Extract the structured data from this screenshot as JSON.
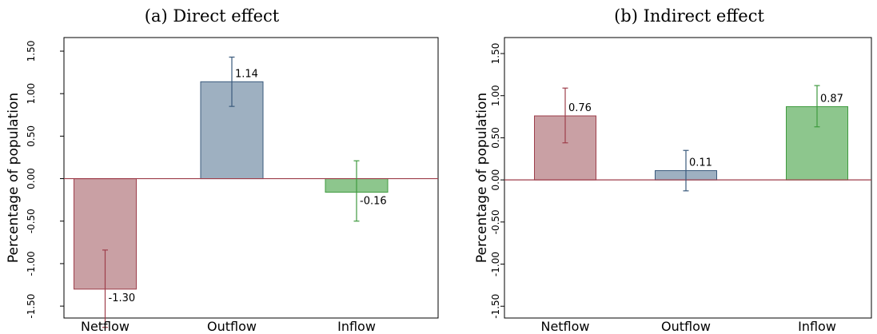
{
  "chart_data": [
    {
      "type": "bar",
      "title": "(a) Direct effect",
      "ylabel": "Percentage of population",
      "xlabel": "",
      "categories": [
        "Netflow",
        "Outflow",
        "Inflow"
      ],
      "values": [
        -1.3,
        1.14,
        -0.16
      ],
      "value_labels": [
        "-1.30",
        "1.14",
        "-0.16"
      ],
      "ci_low": [
        -1.75,
        0.85,
        -0.5
      ],
      "ci_high": [
        -0.84,
        1.43,
        0.21
      ],
      "yticks": [
        -1.5,
        -1.0,
        -0.5,
        0.0,
        0.5,
        1.0,
        1.5
      ],
      "ytick_labels": [
        "-1.50",
        "-1.00",
        "-0.50",
        "0.00",
        "0.50",
        "1.00",
        "1.50"
      ],
      "ylim": [
        -1.64,
        1.66
      ],
      "grid": false,
      "colors": {
        "fills": [
          "#c9a0a4",
          "#9eb0c1",
          "#8dc68d"
        ],
        "strokes": [
          "#9e3e4b",
          "#3a5a7c",
          "#3f9a3f"
        ],
        "zero_line": "#9e3e4b"
      }
    },
    {
      "type": "bar",
      "title": "(b) Indirect effect",
      "ylabel": "Percentage of population",
      "xlabel": "",
      "categories": [
        "Netflow",
        "Outflow",
        "Inflow"
      ],
      "values": [
        0.76,
        0.11,
        0.87
      ],
      "value_labels": [
        "0.76",
        "0.11",
        "0.87"
      ],
      "ci_low": [
        0.44,
        -0.13,
        0.63
      ],
      "ci_high": [
        1.09,
        0.35,
        1.12
      ],
      "yticks": [
        -1.5,
        -1.0,
        -0.5,
        0.0,
        0.5,
        1.0,
        1.5
      ],
      "ytick_labels": [
        "-1.50",
        "-1.00",
        "-0.50",
        "0.00",
        "0.50",
        "1.00",
        "1.50"
      ],
      "ylim": [
        -1.64,
        1.69
      ],
      "grid": false,
      "colors": {
        "fills": [
          "#c9a0a4",
          "#9eb0c1",
          "#8dc68d"
        ],
        "strokes": [
          "#9e3e4b",
          "#3a5a7c",
          "#3f9a3f"
        ],
        "zero_line": "#9e3e4b"
      }
    }
  ]
}
